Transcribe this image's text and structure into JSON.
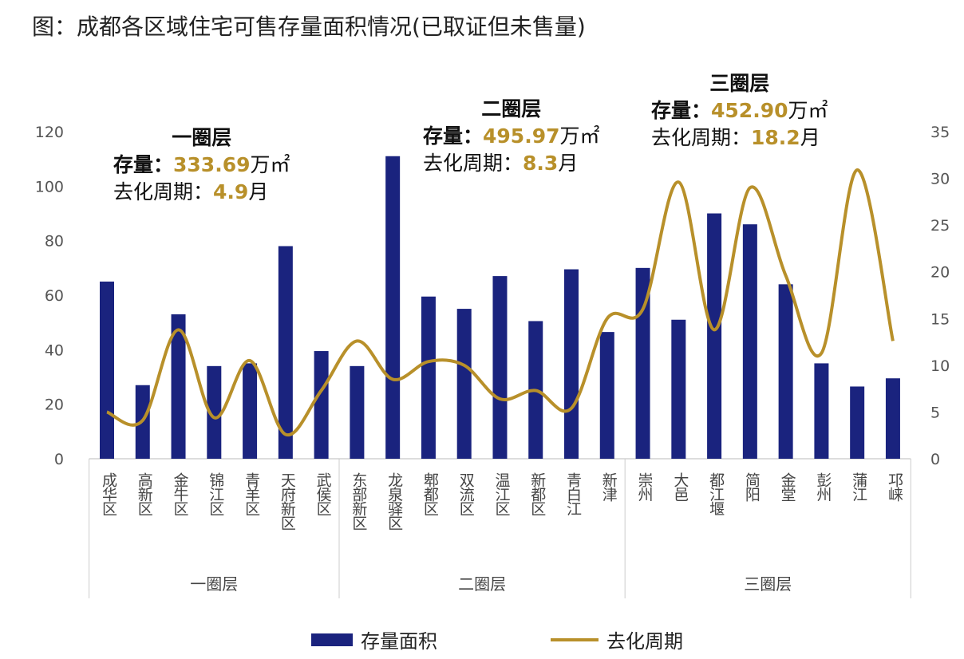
{
  "title": "图：成都各区域住宅可售存量面积情况(已取证但未售量)",
  "annotations": [
    {
      "heading": "一圈层",
      "stock_label": "存量：",
      "stock_value": "333.69",
      "stock_unit": "万㎡",
      "cycle_label": "去化周期：",
      "cycle_value": "4.9",
      "cycle_unit": "月"
    },
    {
      "heading": "二圈层",
      "stock_label": "存量：",
      "stock_value": "495.97",
      "stock_unit": "万㎡",
      "cycle_label": "去化周期：",
      "cycle_value": "8.3",
      "cycle_unit": "月"
    },
    {
      "heading": "三圈层",
      "stock_label": "存量：",
      "stock_value": "452.90",
      "stock_unit": "万㎡",
      "cycle_label": "去化周期：",
      "cycle_value": "18.2",
      "cycle_unit": "月"
    }
  ],
  "colors": {
    "bar": "#1a237e",
    "line": "#b8902a"
  },
  "chart_data": {
    "type": "bar+line",
    "categories": [
      "成华区",
      "高新区",
      "金牛区",
      "锦江区",
      "青羊区",
      "天府新区",
      "武侯区",
      "东部新区",
      "龙泉驿区",
      "郫都区",
      "双流区",
      "温江区",
      "新都区",
      "青白江",
      "新津",
      "崇州",
      "大邑",
      "都江堰",
      "简阳",
      "金堂",
      "彭州",
      "蒲江",
      "邛崃"
    ],
    "groups": [
      {
        "label": "一圈层",
        "count": 7
      },
      {
        "label": "二圈层",
        "count": 8
      },
      {
        "label": "三圈层",
        "count": 8
      }
    ],
    "series": [
      {
        "name": "存量面积",
        "type": "bar",
        "axis": "left",
        "values": [
          65,
          27,
          53,
          34,
          35,
          78,
          39.5,
          34,
          111,
          59.5,
          55,
          67,
          50.5,
          69.5,
          46.5,
          70,
          51,
          90,
          86,
          64,
          35,
          26.5,
          29.5
        ]
      },
      {
        "name": "去化周期",
        "type": "line",
        "axis": "right",
        "values": [
          5,
          4.1,
          13.8,
          4.4,
          10.5,
          2.6,
          7.3,
          12.6,
          8.5,
          10.4,
          10,
          6.4,
          7.3,
          5.4,
          15,
          16,
          29.6,
          13.8,
          29,
          19.6,
          11.3,
          30.9,
          12.6
        ]
      }
    ],
    "y_left": {
      "min": 0,
      "max": 120,
      "ticks": [
        0,
        20,
        40,
        60,
        80,
        100,
        120
      ]
    },
    "y_right": {
      "min": 0,
      "max": 35,
      "ticks": [
        0,
        5,
        10,
        15,
        20,
        25,
        30,
        35
      ]
    },
    "grid": false,
    "legend": "bottom"
  }
}
